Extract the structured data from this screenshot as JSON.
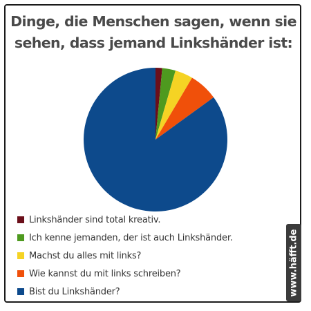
{
  "chart_data": {
    "type": "pie",
    "title_lines": [
      "Dinge, die Menschen sagen, wenn sie",
      "sehen, dass jemand Linkshänder ist:"
    ],
    "slices": [
      {
        "label": "Linkshänder sind total kreativ.",
        "value": 1.5,
        "color": "#6b0f1a"
      },
      {
        "label": "Ich kenne jemanden, der ist auch Linkshänder.",
        "value": 3,
        "color": "#4e9a1f"
      },
      {
        "label": "Machst du alles mit links?",
        "value": 4,
        "color": "#f5d324"
      },
      {
        "label": "Wie kannst du mit links schreiben?",
        "value": 6.5,
        "color": "#f0500a"
      },
      {
        "label": "Bist du Linkshänder?",
        "value": 85,
        "color": "#0d4a8c"
      }
    ],
    "start_angle": "12 o'clock",
    "direction": "clockwise",
    "legend_position": "bottom-left"
  },
  "watermark": "www.häfft.de"
}
